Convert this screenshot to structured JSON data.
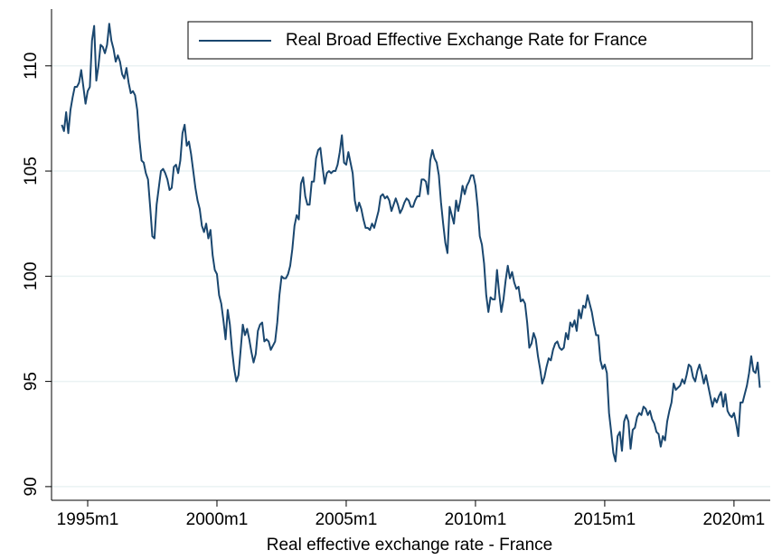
{
  "chart_data": {
    "type": "line",
    "xlabel": "Real effective exchange rate - France",
    "categories": [
      "1994m1",
      "1994m2",
      "1994m3",
      "1994m4",
      "1994m5",
      "1994m6",
      "1994m7",
      "1994m8",
      "1994m9",
      "1994m10",
      "1994m11",
      "1994m12",
      "1995m1",
      "1995m2",
      "1995m3",
      "1995m4",
      "1995m5",
      "1995m6",
      "1995m7",
      "1995m8",
      "1995m9",
      "1995m10",
      "1995m11",
      "1995m12",
      "1996m1",
      "1996m2",
      "1996m3",
      "1996m4",
      "1996m5",
      "1996m6",
      "1996m7",
      "1996m8",
      "1996m9",
      "1996m10",
      "1996m11",
      "1996m12",
      "1997m1",
      "1997m2",
      "1997m3",
      "1997m4",
      "1997m5",
      "1997m6",
      "1997m7",
      "1997m8",
      "1997m9",
      "1997m10",
      "1997m11",
      "1997m12",
      "1998m1",
      "1998m2",
      "1998m3",
      "1998m4",
      "1998m5",
      "1998m6",
      "1998m7",
      "1998m8",
      "1998m9",
      "1998m10",
      "1998m11",
      "1998m12",
      "1999m1",
      "1999m2",
      "1999m3",
      "1999m4",
      "1999m5",
      "1999m6",
      "1999m7",
      "1999m8",
      "1999m9",
      "1999m10",
      "1999m11",
      "1999m12",
      "2000m1",
      "2000m2",
      "2000m3",
      "2000m4",
      "2000m5",
      "2000m6",
      "2000m7",
      "2000m8",
      "2000m9",
      "2000m10",
      "2000m11",
      "2000m12",
      "2001m1",
      "2001m2",
      "2001m3",
      "2001m4",
      "2001m5",
      "2001m6",
      "2001m7",
      "2001m8",
      "2001m9",
      "2001m10",
      "2001m11",
      "2001m12",
      "2002m1",
      "2002m2",
      "2002m3",
      "2002m4",
      "2002m5",
      "2002m6",
      "2002m7",
      "2002m8",
      "2002m9",
      "2002m10",
      "2002m11",
      "2002m12",
      "2003m1",
      "2003m2",
      "2003m3",
      "2003m4",
      "2003m5",
      "2003m6",
      "2003m7",
      "2003m8",
      "2003m9",
      "2003m10",
      "2003m11",
      "2003m12",
      "2004m1",
      "2004m2",
      "2004m3",
      "2004m4",
      "2004m5",
      "2004m6",
      "2004m7",
      "2004m8",
      "2004m9",
      "2004m10",
      "2004m11",
      "2004m12",
      "2005m1",
      "2005m2",
      "2005m3",
      "2005m4",
      "2005m5",
      "2005m6",
      "2005m7",
      "2005m8",
      "2005m9",
      "2005m10",
      "2005m11",
      "2005m12",
      "2006m1",
      "2006m2",
      "2006m3",
      "2006m4",
      "2006m5",
      "2006m6",
      "2006m7",
      "2006m8",
      "2006m9",
      "2006m10",
      "2006m11",
      "2006m12",
      "2007m1",
      "2007m2",
      "2007m3",
      "2007m4",
      "2007m5",
      "2007m6",
      "2007m7",
      "2007m8",
      "2007m9",
      "2007m10",
      "2007m11",
      "2007m12",
      "2008m1",
      "2008m2",
      "2008m3",
      "2008m4",
      "2008m5",
      "2008m6",
      "2008m7",
      "2008m8",
      "2008m9",
      "2008m10",
      "2008m11",
      "2008m12",
      "2009m1",
      "2009m2",
      "2009m3",
      "2009m4",
      "2009m5",
      "2009m6",
      "2009m7",
      "2009m8",
      "2009m9",
      "2009m10",
      "2009m11",
      "2009m12",
      "2010m1",
      "2010m2",
      "2010m3",
      "2010m4",
      "2010m5",
      "2010m6",
      "2010m7",
      "2010m8",
      "2010m9",
      "2010m10",
      "2010m11",
      "2010m12",
      "2011m1",
      "2011m2",
      "2011m3",
      "2011m4",
      "2011m5",
      "2011m6",
      "2011m7",
      "2011m8",
      "2011m9",
      "2011m10",
      "2011m11",
      "2011m12",
      "2012m1",
      "2012m2",
      "2012m3",
      "2012m4",
      "2012m5",
      "2012m6",
      "2012m7",
      "2012m8",
      "2012m9",
      "2012m10",
      "2012m11",
      "2012m12",
      "2013m1",
      "2013m2",
      "2013m3",
      "2013m4",
      "2013m5",
      "2013m6",
      "2013m7",
      "2013m8",
      "2013m9",
      "2013m10",
      "2013m11",
      "2013m12",
      "2014m1",
      "2014m2",
      "2014m3",
      "2014m4",
      "2014m5",
      "2014m6",
      "2014m7",
      "2014m8",
      "2014m9",
      "2014m10",
      "2014m11",
      "2014m12",
      "2015m1",
      "2015m2",
      "2015m3",
      "2015m4",
      "2015m5",
      "2015m6",
      "2015m7",
      "2015m8",
      "2015m9",
      "2015m10",
      "2015m11",
      "2015m12",
      "2016m1",
      "2016m2",
      "2016m3",
      "2016m4",
      "2016m5",
      "2016m6",
      "2016m7",
      "2016m8",
      "2016m9",
      "2016m10",
      "2016m11",
      "2016m12",
      "2017m1",
      "2017m2",
      "2017m3",
      "2017m4",
      "2017m5",
      "2017m6",
      "2017m7",
      "2017m8",
      "2017m9",
      "2017m10",
      "2017m11",
      "2017m12",
      "2018m1",
      "2018m2",
      "2018m3",
      "2018m4",
      "2018m5",
      "2018m6",
      "2018m7",
      "2018m8",
      "2018m9",
      "2018m10",
      "2018m11",
      "2018m12",
      "2019m1",
      "2019m2",
      "2019m3",
      "2019m4",
      "2019m5",
      "2019m6",
      "2019m7",
      "2019m8",
      "2019m9",
      "2019m10",
      "2019m11",
      "2019m12",
      "2020m1",
      "2020m2",
      "2020m3",
      "2020m4",
      "2020m5",
      "2020m6",
      "2020m7",
      "2020m8",
      "2020m9",
      "2020m10",
      "2020m11",
      "2020m12",
      "2021m1"
    ],
    "series": [
      {
        "name": "Real Broad Effective Exchange Rate for France",
        "color": "#1a476f",
        "values": [
          107.2,
          106.9,
          107.8,
          106.8,
          107.9,
          108.5,
          109.0,
          109.0,
          109.2,
          109.8,
          109.0,
          108.2,
          108.8,
          109.0,
          111.2,
          111.9,
          109.3,
          110.0,
          111.0,
          110.9,
          110.6,
          111.0,
          112.0,
          111.2,
          110.8,
          110.2,
          110.5,
          110.2,
          109.6,
          109.4,
          109.9,
          109.2,
          108.7,
          108.8,
          108.6,
          107.9,
          106.5,
          105.5,
          105.4,
          104.9,
          104.6,
          103.3,
          101.9,
          101.8,
          103.4,
          104.2,
          105.0,
          105.1,
          104.9,
          104.6,
          104.1,
          104.2,
          105.2,
          105.3,
          104.9,
          105.5,
          106.8,
          107.2,
          106.2,
          106.4,
          105.8,
          105.0,
          104.2,
          103.6,
          103.2,
          102.4,
          102.1,
          102.5,
          101.8,
          102.2,
          101.0,
          100.3,
          100.1,
          99.1,
          98.7,
          97.9,
          97.0,
          98.4,
          97.7,
          96.5,
          95.6,
          95.0,
          95.3,
          96.5,
          97.7,
          97.2,
          97.5,
          97.0,
          96.4,
          95.9,
          96.3,
          97.4,
          97.7,
          97.8,
          96.9,
          97.0,
          96.9,
          96.5,
          96.7,
          96.9,
          97.8,
          99.1,
          100.0,
          99.9,
          99.9,
          100.1,
          100.5,
          101.3,
          102.4,
          102.9,
          102.7,
          104.4,
          104.7,
          103.8,
          103.4,
          103.4,
          104.5,
          104.5,
          105.6,
          106.0,
          106.1,
          105.2,
          104.4,
          104.9,
          105.0,
          104.9,
          105.0,
          105.0,
          105.3,
          105.9,
          106.7,
          105.4,
          105.3,
          105.9,
          105.4,
          104.9,
          103.6,
          103.1,
          103.5,
          103.2,
          102.7,
          102.3,
          102.3,
          102.2,
          102.5,
          102.3,
          102.7,
          103.1,
          103.8,
          103.9,
          103.7,
          103.8,
          103.6,
          103.1,
          103.4,
          103.7,
          103.4,
          103.0,
          103.2,
          103.5,
          103.7,
          103.6,
          103.3,
          103.3,
          103.6,
          103.8,
          103.8,
          104.6,
          104.6,
          104.5,
          103.9,
          105.5,
          106.0,
          105.6,
          105.4,
          104.8,
          103.5,
          102.5,
          101.6,
          101.1,
          103.3,
          102.9,
          102.5,
          103.6,
          103.1,
          103.6,
          104.3,
          103.9,
          104.3,
          104.5,
          104.8,
          104.8,
          104.3,
          103.3,
          101.9,
          101.5,
          100.6,
          99.1,
          98.3,
          99.0,
          98.9,
          98.9,
          100.3,
          99.2,
          98.3,
          98.9,
          99.8,
          100.5,
          99.9,
          100.2,
          99.7,
          99.4,
          99.5,
          98.8,
          98.9,
          98.7,
          97.8,
          96.6,
          96.8,
          97.3,
          97.0,
          96.2,
          95.6,
          94.9,
          95.2,
          95.7,
          96.1,
          96.0,
          96.5,
          96.8,
          96.9,
          96.6,
          96.5,
          96.6,
          97.3,
          97.0,
          97.8,
          97.6,
          97.9,
          97.4,
          98.4,
          98.0,
          98.6,
          98.5,
          99.1,
          98.7,
          98.3,
          97.7,
          97.2,
          97.2,
          96.0,
          95.6,
          95.8,
          95.4,
          93.5,
          92.6,
          91.6,
          91.2,
          92.4,
          92.6,
          91.7,
          93.1,
          93.4,
          93.1,
          91.8,
          92.7,
          92.8,
          93.3,
          93.5,
          93.4,
          93.8,
          93.7,
          93.4,
          93.6,
          93.2,
          93.0,
          92.6,
          92.5,
          91.9,
          92.4,
          92.2,
          93.1,
          93.6,
          94.0,
          94.9,
          94.6,
          94.7,
          94.8,
          95.1,
          94.9,
          95.3,
          95.8,
          95.7,
          95.2,
          95.0,
          95.5,
          95.8,
          95.4,
          94.9,
          95.3,
          94.8,
          94.3,
          93.8,
          94.2,
          94.0,
          94.3,
          94.5,
          93.8,
          94.4,
          93.6,
          93.4,
          93.3,
          93.5,
          93.0,
          92.4,
          94.0,
          94.0,
          94.4,
          94.8,
          95.4,
          96.2,
          95.5,
          95.4,
          95.9,
          94.7
        ]
      }
    ],
    "xticks": [
      "1995m1",
      "2000m1",
      "2005m1",
      "2010m1",
      "2015m1",
      "2020m1"
    ],
    "ylim": [
      89.35,
      112.7
    ],
    "yticks": [
      90,
      95,
      100,
      105,
      110
    ],
    "grid": true,
    "legend": "top-right"
  }
}
